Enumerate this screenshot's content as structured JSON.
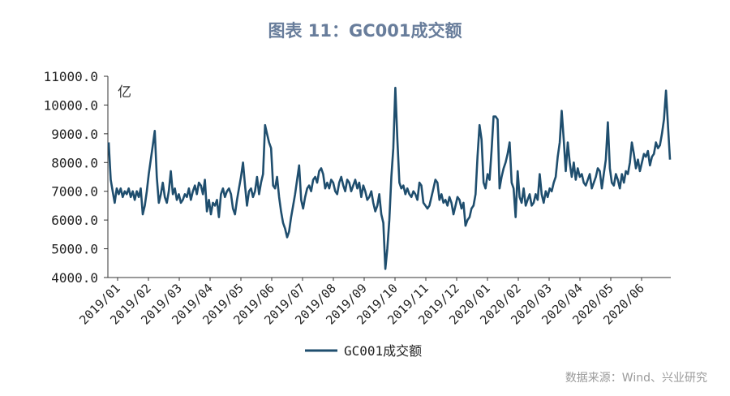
{
  "title": "图表 11：GC001成交额",
  "source": "数据来源：Wind、兴业研究",
  "chart_data": {
    "type": "line",
    "title": "图表 11：GC001成交额",
    "unit_label": "亿",
    "ylim": [
      4000,
      11000
    ],
    "y_ticks": [
      "11000.0",
      "10000.0",
      "9000.0",
      "8000.0",
      "7000.0",
      "6000.0",
      "5000.0",
      "4000.0"
    ],
    "y_tick_values": [
      11000,
      10000,
      9000,
      8000,
      7000,
      6000,
      5000,
      4000
    ],
    "x_ticks": [
      "2019/01",
      "2019/02",
      "2019/03",
      "2019/04",
      "2019/05",
      "2019/06",
      "2019/07",
      "2019/08",
      "2019/09",
      "2019/10",
      "2019/11",
      "2019/12",
      "2020/01",
      "2020/02",
      "2020/03",
      "2020/04",
      "2020/05",
      "2020/06"
    ],
    "legend_position": "bottom",
    "grid": false,
    "color": "#1f4e6e",
    "series": [
      {
        "name": "GC001成交额",
        "values": [
          8700,
          7400,
          7000,
          6600,
          7100,
          6900,
          7100,
          6800,
          7000,
          6900,
          7100,
          6800,
          7000,
          6700,
          7000,
          6800,
          7100,
          6200,
          6500,
          7000,
          7600,
          8100,
          8600,
          9100,
          7500,
          6600,
          6900,
          7300,
          6800,
          6600,
          7000,
          7700,
          6900,
          7100,
          6700,
          6900,
          6600,
          6700,
          6900,
          6800,
          7100,
          6700,
          7000,
          7200,
          6900,
          7300,
          7200,
          6900,
          7400,
          6300,
          6700,
          6200,
          6600,
          6500,
          6700,
          6100,
          6900,
          7100,
          6800,
          7000,
          7100,
          6900,
          6400,
          6200,
          6700,
          7100,
          7500,
          8000,
          7200,
          6500,
          7000,
          7100,
          6800,
          7000,
          7500,
          6900,
          7300,
          7600,
          9300,
          9000,
          8700,
          8500,
          7200,
          7100,
          7500,
          6800,
          6300,
          5900,
          5700,
          5400,
          5600,
          6100,
          6500,
          6900,
          7400,
          7900,
          6700,
          6400,
          6800,
          7100,
          7200,
          7000,
          7400,
          7500,
          7300,
          7700,
          7800,
          7600,
          7100,
          7300,
          7100,
          7400,
          7300,
          7000,
          6900,
          7300,
          7500,
          7200,
          7000,
          7400,
          7300,
          7000,
          7200,
          7400,
          7100,
          7300,
          6800,
          7200,
          7000,
          6700,
          6800,
          7000,
          6600,
          6300,
          6500,
          6900,
          6200,
          5900,
          4300,
          5000,
          6000,
          7500,
          8500,
          10600,
          8800,
          7300,
          7100,
          7200,
          6900,
          7100,
          6900,
          6800,
          7000,
          6900,
          6700,
          7300,
          7200,
          6600,
          6500,
          6400,
          6500,
          6800,
          7100,
          7400,
          7300,
          6700,
          6900,
          6600,
          6700,
          6500,
          6800,
          6600,
          6200,
          6500,
          6800,
          6700,
          6400,
          6600,
          5800,
          6000,
          6100,
          6400,
          6500,
          6900,
          8200,
          9300,
          8800,
          7300,
          7100,
          7600,
          7400,
          8400,
          9600,
          9600,
          9500,
          7100,
          7500,
          7800,
          8000,
          8300,
          8700,
          7300,
          7100,
          6100,
          7700,
          6800,
          6600,
          7100,
          6500,
          6700,
          6900,
          6500,
          6600,
          6900,
          6700,
          7600,
          6900,
          6600,
          7000,
          6800,
          7100,
          7000,
          7300,
          7500,
          8200,
          8700,
          9800,
          8800,
          7700,
          8700,
          8000,
          7500,
          8000,
          7400,
          7800,
          7500,
          7600,
          7300,
          7200,
          7400,
          7600,
          7100,
          7300,
          7500,
          7800,
          7700,
          7100,
          7600,
          8100,
          9400,
          7800,
          7300,
          7200,
          7600,
          7400,
          7100,
          7600,
          7300,
          7700,
          7600,
          8000,
          8700,
          8300,
          7800,
          8100,
          7700,
          8000,
          8300,
          8200,
          8400,
          7900,
          8200,
          8300,
          8700,
          8500,
          8600,
          9000,
          9500,
          10500,
          9300,
          8100
        ]
      }
    ]
  }
}
